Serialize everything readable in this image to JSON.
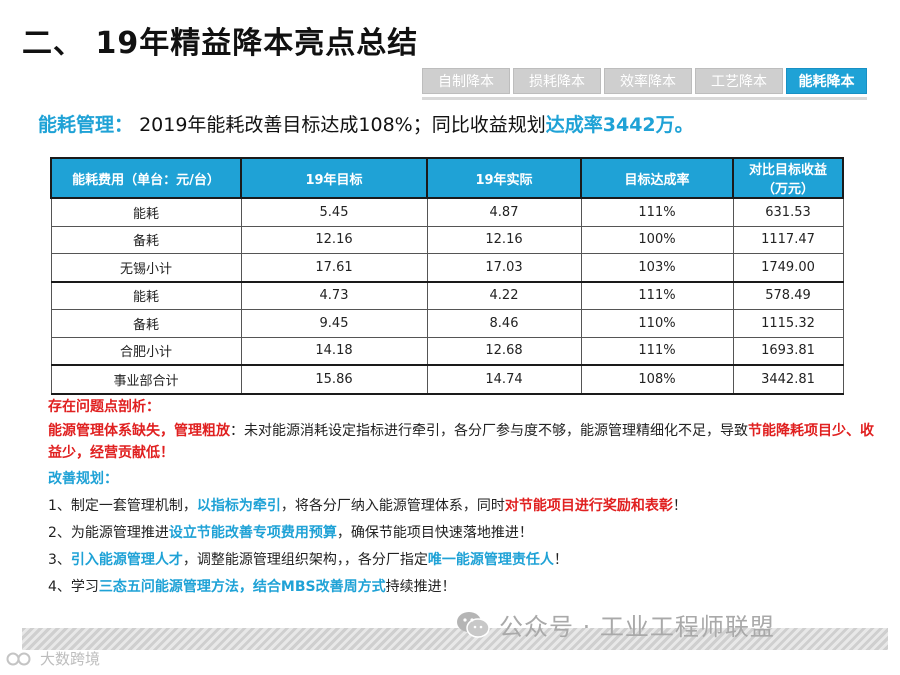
{
  "header": {
    "title": "二、 19年精益降本亮点总结"
  },
  "tabs": [
    {
      "label": "自制降本",
      "active": false
    },
    {
      "label": "损耗降本",
      "active": false
    },
    {
      "label": "效率降本",
      "active": false
    },
    {
      "label": "工艺降本",
      "active": false
    },
    {
      "label": "能耗降本",
      "active": true
    }
  ],
  "summary": {
    "label": "能耗管理：",
    "text": "2019年能耗改善目标达成108%；同比收益规划",
    "highlight": "达成率3442万。"
  },
  "table": {
    "headers": [
      "能耗费用（单台：元/台）",
      "19年目标",
      "19年实际",
      "目标达成率",
      "对比目标收益（万元）"
    ],
    "rows": [
      [
        "能耗",
        "5.45",
        "4.87",
        "111%",
        "631.53"
      ],
      [
        "备耗",
        "12.16",
        "12.16",
        "100%",
        "1117.47"
      ],
      [
        "无锡小计",
        "17.61",
        "17.03",
        "103%",
        "1749.00"
      ],
      [
        "能耗",
        "4.73",
        "4.22",
        "111%",
        "578.49"
      ],
      [
        "备耗",
        "9.45",
        "8.46",
        "110%",
        "1115.32"
      ],
      [
        "合肥小计",
        "14.18",
        "12.68",
        "111%",
        "1693.81"
      ],
      [
        "事业部合计",
        "15.86",
        "14.74",
        "108%",
        "3442.81"
      ]
    ]
  },
  "analysis": {
    "title": "存在问题点剖析：",
    "lead": "能源管理体系缺失，管理粗放",
    "body": "：未对能源消耗设定指标进行牵引，各分厂参与度不够，能源管理精细化不足，导致",
    "tail": "节能降耗项目少、收益少，经营贡献低！"
  },
  "improvement": {
    "title": "改善规划：",
    "items": [
      {
        "a": "1、制定一套管理机制，",
        "b": "以指标为牵引",
        "c": "，将各分厂纳入能源管理体系，同时",
        "d": "对节能项目进行奖励和表彰",
        "e": "！"
      },
      {
        "a": "2、为能源管理推进",
        "b": "设立节能改善专项费用预算",
        "c": "，确保节能项目快速落地推进！",
        "d": "",
        "e": ""
      },
      {
        "a": "3、",
        "b": "引入能源管理人才",
        "c": "，调整能源管理组织架构，，各分厂指定",
        "d": "唯一能源管理责任人",
        "e": "！"
      },
      {
        "a": "4、学习",
        "b": "三态五问能源管理方法，结合MBS改善周方式",
        "c": "持续推进！",
        "d": "",
        "e": ""
      }
    ]
  },
  "watermark": {
    "text": "公众号 · 工业工程师联盟",
    "icon": "wechat-icon"
  },
  "corner": {
    "text": "大数跨境",
    "icon": "brand-logo-icon"
  }
}
